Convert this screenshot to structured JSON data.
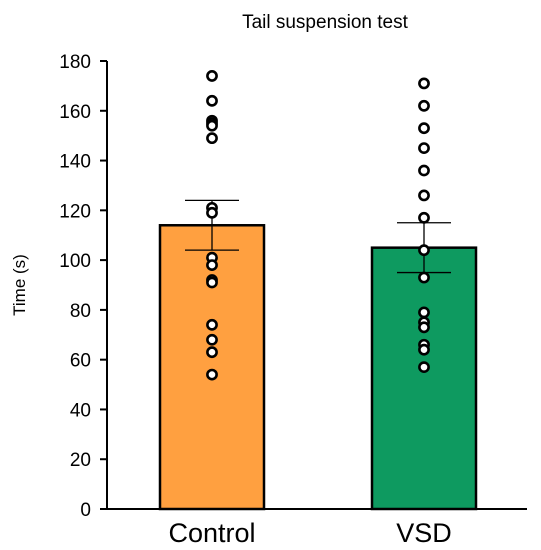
{
  "chart_data": {
    "type": "bar",
    "title": "Tail suspension test",
    "xlabel": "",
    "ylabel": "Time (s)",
    "ylim": [
      0,
      180
    ],
    "yticks": [
      0,
      20,
      40,
      60,
      80,
      100,
      120,
      140,
      160,
      180
    ],
    "categories": [
      "Control",
      "VSD"
    ],
    "values": [
      114,
      105
    ],
    "error": [
      10,
      10
    ],
    "points": [
      [
        174,
        164,
        156,
        155,
        154,
        149,
        121,
        119,
        101,
        98,
        92,
        91,
        74,
        68,
        63,
        54
      ],
      [
        171,
        162,
        153,
        145,
        136,
        126,
        117,
        104,
        93,
        79,
        75,
        73,
        66,
        64,
        57
      ]
    ],
    "colors": [
      "#FFA040",
      "#0E9A60"
    ],
    "grid": false,
    "legend": "none"
  }
}
